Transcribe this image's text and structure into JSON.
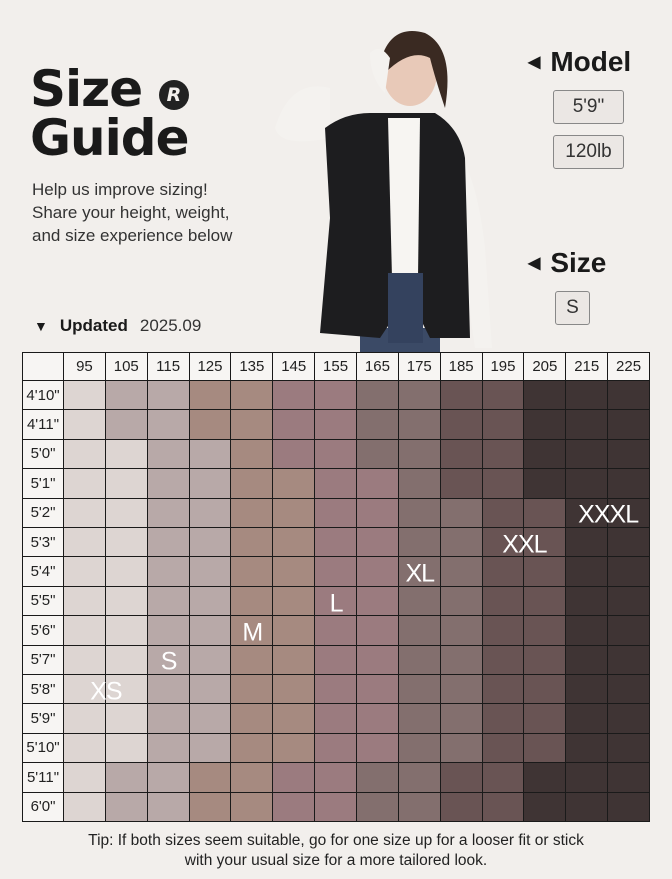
{
  "header": {
    "title_line1": "Size",
    "title_line2": "Guide",
    "logo_letter": "R",
    "subtitle": [
      "Help us improve sizing!",
      "Share your height, weight,",
      "and size experience below"
    ],
    "updated_label": "Updated",
    "updated_date": "2025.09"
  },
  "model": {
    "heading": "Model",
    "height": "5'9\"",
    "weight": "120lb",
    "size_heading": "Size",
    "size": "S"
  },
  "size_colors": {
    "XS": "#ddd5d2",
    "S": "#b8a9a8",
    "M": "#a68a80",
    "L": "#9b7b7f",
    "XL": "#836f6e",
    "XXL": "#695454",
    "XXXL": "#3f3434"
  },
  "table": {
    "weights_lb": [
      "95",
      "105",
      "115",
      "125",
      "135",
      "145",
      "155",
      "165",
      "175",
      "185",
      "195",
      "205",
      "215",
      "225"
    ],
    "rows": [
      {
        "height": "4'10\"",
        "sizes": [
          "XS",
          "S",
          "S",
          "M",
          "M",
          "L",
          "L",
          "XL",
          "XL",
          "XXL",
          "XXL",
          "XXXL",
          "XXXL",
          "XXXL"
        ]
      },
      {
        "height": "4'11\"",
        "sizes": [
          "XS",
          "S",
          "S",
          "M",
          "M",
          "L",
          "L",
          "XL",
          "XL",
          "XXL",
          "XXL",
          "XXXL",
          "XXXL",
          "XXXL"
        ]
      },
      {
        "height": "5'0\"",
        "sizes": [
          "XS",
          "XS",
          "S",
          "S",
          "M",
          "L",
          "L",
          "XL",
          "XL",
          "XXL",
          "XXL",
          "XXXL",
          "XXXL",
          "XXXL"
        ]
      },
      {
        "height": "5'1\"",
        "sizes": [
          "XS",
          "XS",
          "S",
          "S",
          "M",
          "M",
          "L",
          "L",
          "XL",
          "XXL",
          "XXL",
          "XXXL",
          "XXXL",
          "XXXL"
        ]
      },
      {
        "height": "5'2\"",
        "sizes": [
          "XS",
          "XS",
          "S",
          "S",
          "M",
          "M",
          "L",
          "L",
          "XL",
          "XL",
          "XXL",
          "XXL",
          "XXXL",
          "XXXL"
        ]
      },
      {
        "height": "5'3\"",
        "sizes": [
          "XS",
          "XS",
          "S",
          "S",
          "M",
          "M",
          "L",
          "L",
          "XL",
          "XL",
          "XXL",
          "XXL",
          "XXXL",
          "XXXL"
        ]
      },
      {
        "height": "5'4\"",
        "sizes": [
          "XS",
          "XS",
          "S",
          "S",
          "M",
          "M",
          "L",
          "L",
          "XL",
          "XL",
          "XXL",
          "XXL",
          "XXXL",
          "XXXL"
        ]
      },
      {
        "height": "5'5\"",
        "sizes": [
          "XS",
          "XS",
          "S",
          "S",
          "M",
          "M",
          "L",
          "L",
          "XL",
          "XL",
          "XXL",
          "XXL",
          "XXXL",
          "XXXL"
        ]
      },
      {
        "height": "5'6\"",
        "sizes": [
          "XS",
          "XS",
          "S",
          "S",
          "M",
          "M",
          "L",
          "L",
          "XL",
          "XL",
          "XXL",
          "XXL",
          "XXXL",
          "XXXL"
        ]
      },
      {
        "height": "5'7\"",
        "sizes": [
          "XS",
          "XS",
          "S",
          "S",
          "M",
          "M",
          "L",
          "L",
          "XL",
          "XL",
          "XXL",
          "XXL",
          "XXXL",
          "XXXL"
        ]
      },
      {
        "height": "5'8\"",
        "sizes": [
          "XS",
          "XS",
          "S",
          "S",
          "M",
          "M",
          "L",
          "L",
          "XL",
          "XL",
          "XXL",
          "XXL",
          "XXXL",
          "XXXL"
        ]
      },
      {
        "height": "5'9\"",
        "sizes": [
          "XS",
          "XS",
          "S",
          "S",
          "M",
          "M",
          "L",
          "L",
          "XL",
          "XL",
          "XXL",
          "XXL",
          "XXXL",
          "XXXL"
        ]
      },
      {
        "height": "5'10\"",
        "sizes": [
          "XS",
          "XS",
          "S",
          "S",
          "M",
          "M",
          "L",
          "L",
          "XL",
          "XL",
          "XXL",
          "XXL",
          "XXXL",
          "XXXL"
        ]
      },
      {
        "height": "5'11\"",
        "sizes": [
          "XS",
          "S",
          "S",
          "M",
          "M",
          "L",
          "L",
          "XL",
          "XL",
          "XXL",
          "XXL",
          "XXXL",
          "XXXL",
          "XXXL"
        ]
      },
      {
        "height": "6'0\"",
        "sizes": [
          "XS",
          "S",
          "S",
          "M",
          "M",
          "L",
          "L",
          "XL",
          "XL",
          "XXL",
          "XXL",
          "XXXL",
          "XXXL",
          "XXXL"
        ]
      }
    ],
    "size_labels": [
      {
        "text": "XS",
        "height": "5'8\"",
        "weight_from": "95",
        "weight_to": "105"
      },
      {
        "text": "S",
        "height": "5'7\"",
        "weight_from": "115",
        "weight_to": "115"
      },
      {
        "text": "M",
        "height": "5'6\"",
        "weight_from": "135",
        "weight_to": "135"
      },
      {
        "text": "L",
        "height": "5'5\"",
        "weight_from": "155",
        "weight_to": "155"
      },
      {
        "text": "XL",
        "height": "5'4\"",
        "weight_from": "175",
        "weight_to": "175"
      },
      {
        "text": "XXL",
        "height": "5'3\"",
        "weight_from": "195",
        "weight_to": "205"
      },
      {
        "text": "XXXL",
        "height": "5'2\"",
        "weight_from": "215",
        "weight_to": "225"
      }
    ]
  },
  "tip": [
    "Tip: If both sizes seem suitable, go for one size up for a looser fit or stick",
    "with your usual size for a more tailored look."
  ]
}
